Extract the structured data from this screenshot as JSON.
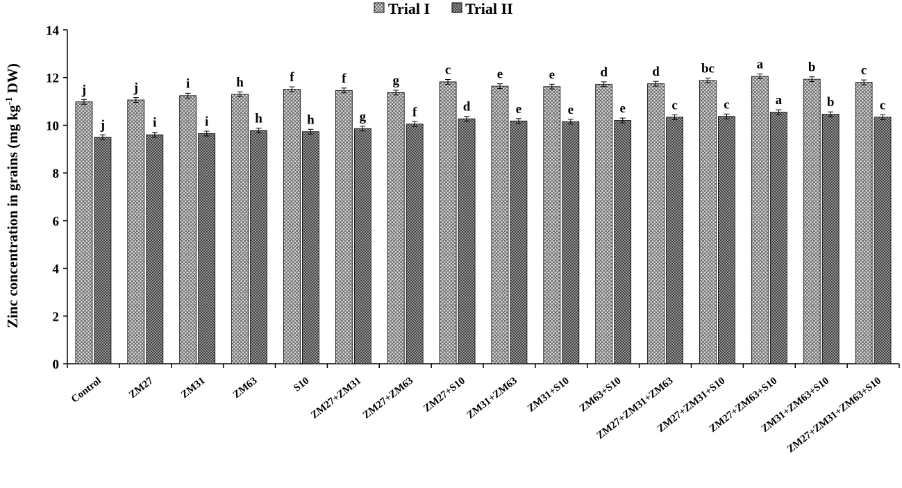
{
  "chart_data": {
    "type": "bar",
    "title": "",
    "xlabel": "",
    "ylabel_parts": [
      "Zinc concentration in grains (mg kg",
      "-1",
      " DW)"
    ],
    "ylim": [
      0,
      14
    ],
    "yticks": [
      0,
      2,
      4,
      6,
      8,
      10,
      12,
      14
    ],
    "grid": false,
    "legend_position": "top-center",
    "categories": [
      "Control",
      "ZM27",
      "ZM31",
      "ZM63",
      "S10",
      "ZM27+ZM31",
      "ZM27+ZM63",
      "ZM27+S10",
      "ZM31+ZM63",
      "ZM31+S10",
      "ZM63+S10",
      "ZM27+ZM31+ZM63",
      "ZM27+ZM31+S10",
      "ZM27+ZM63+S10",
      "ZM31+ZM63+S10",
      "ZM27+ZM31+ZM63+S10"
    ],
    "series": [
      {
        "name": "Trial I",
        "color": "#9a9a9a",
        "values": [
          10.98,
          11.06,
          11.24,
          11.3,
          11.51,
          11.46,
          11.37,
          11.82,
          11.64,
          11.62,
          11.72,
          11.74,
          11.88,
          12.05,
          11.93,
          11.8
        ],
        "errors": [
          0.1,
          0.1,
          0.1,
          0.1,
          0.1,
          0.1,
          0.1,
          0.1,
          0.1,
          0.1,
          0.1,
          0.1,
          0.1,
          0.1,
          0.1,
          0.1
        ],
        "letters": [
          "j",
          "j",
          "i",
          "h",
          "f",
          "f",
          "g",
          "c",
          "e",
          "e",
          "d",
          "d",
          "bc",
          "a",
          "b",
          "c"
        ]
      },
      {
        "name": "Trial II",
        "color": "#6a6a6a",
        "values": [
          9.5,
          9.6,
          9.65,
          9.78,
          9.73,
          9.86,
          10.05,
          10.27,
          10.18,
          10.15,
          10.2,
          10.34,
          10.37,
          10.55,
          10.46,
          10.34
        ],
        "errors": [
          0.1,
          0.1,
          0.1,
          0.1,
          0.1,
          0.1,
          0.1,
          0.1,
          0.1,
          0.1,
          0.1,
          0.1,
          0.1,
          0.1,
          0.1,
          0.1
        ],
        "letters": [
          "j",
          "i",
          "i",
          "h",
          "h",
          "g",
          "f",
          "d",
          "e",
          "e",
          "e",
          "c",
          "c",
          "a",
          "b",
          "c"
        ]
      }
    ]
  }
}
